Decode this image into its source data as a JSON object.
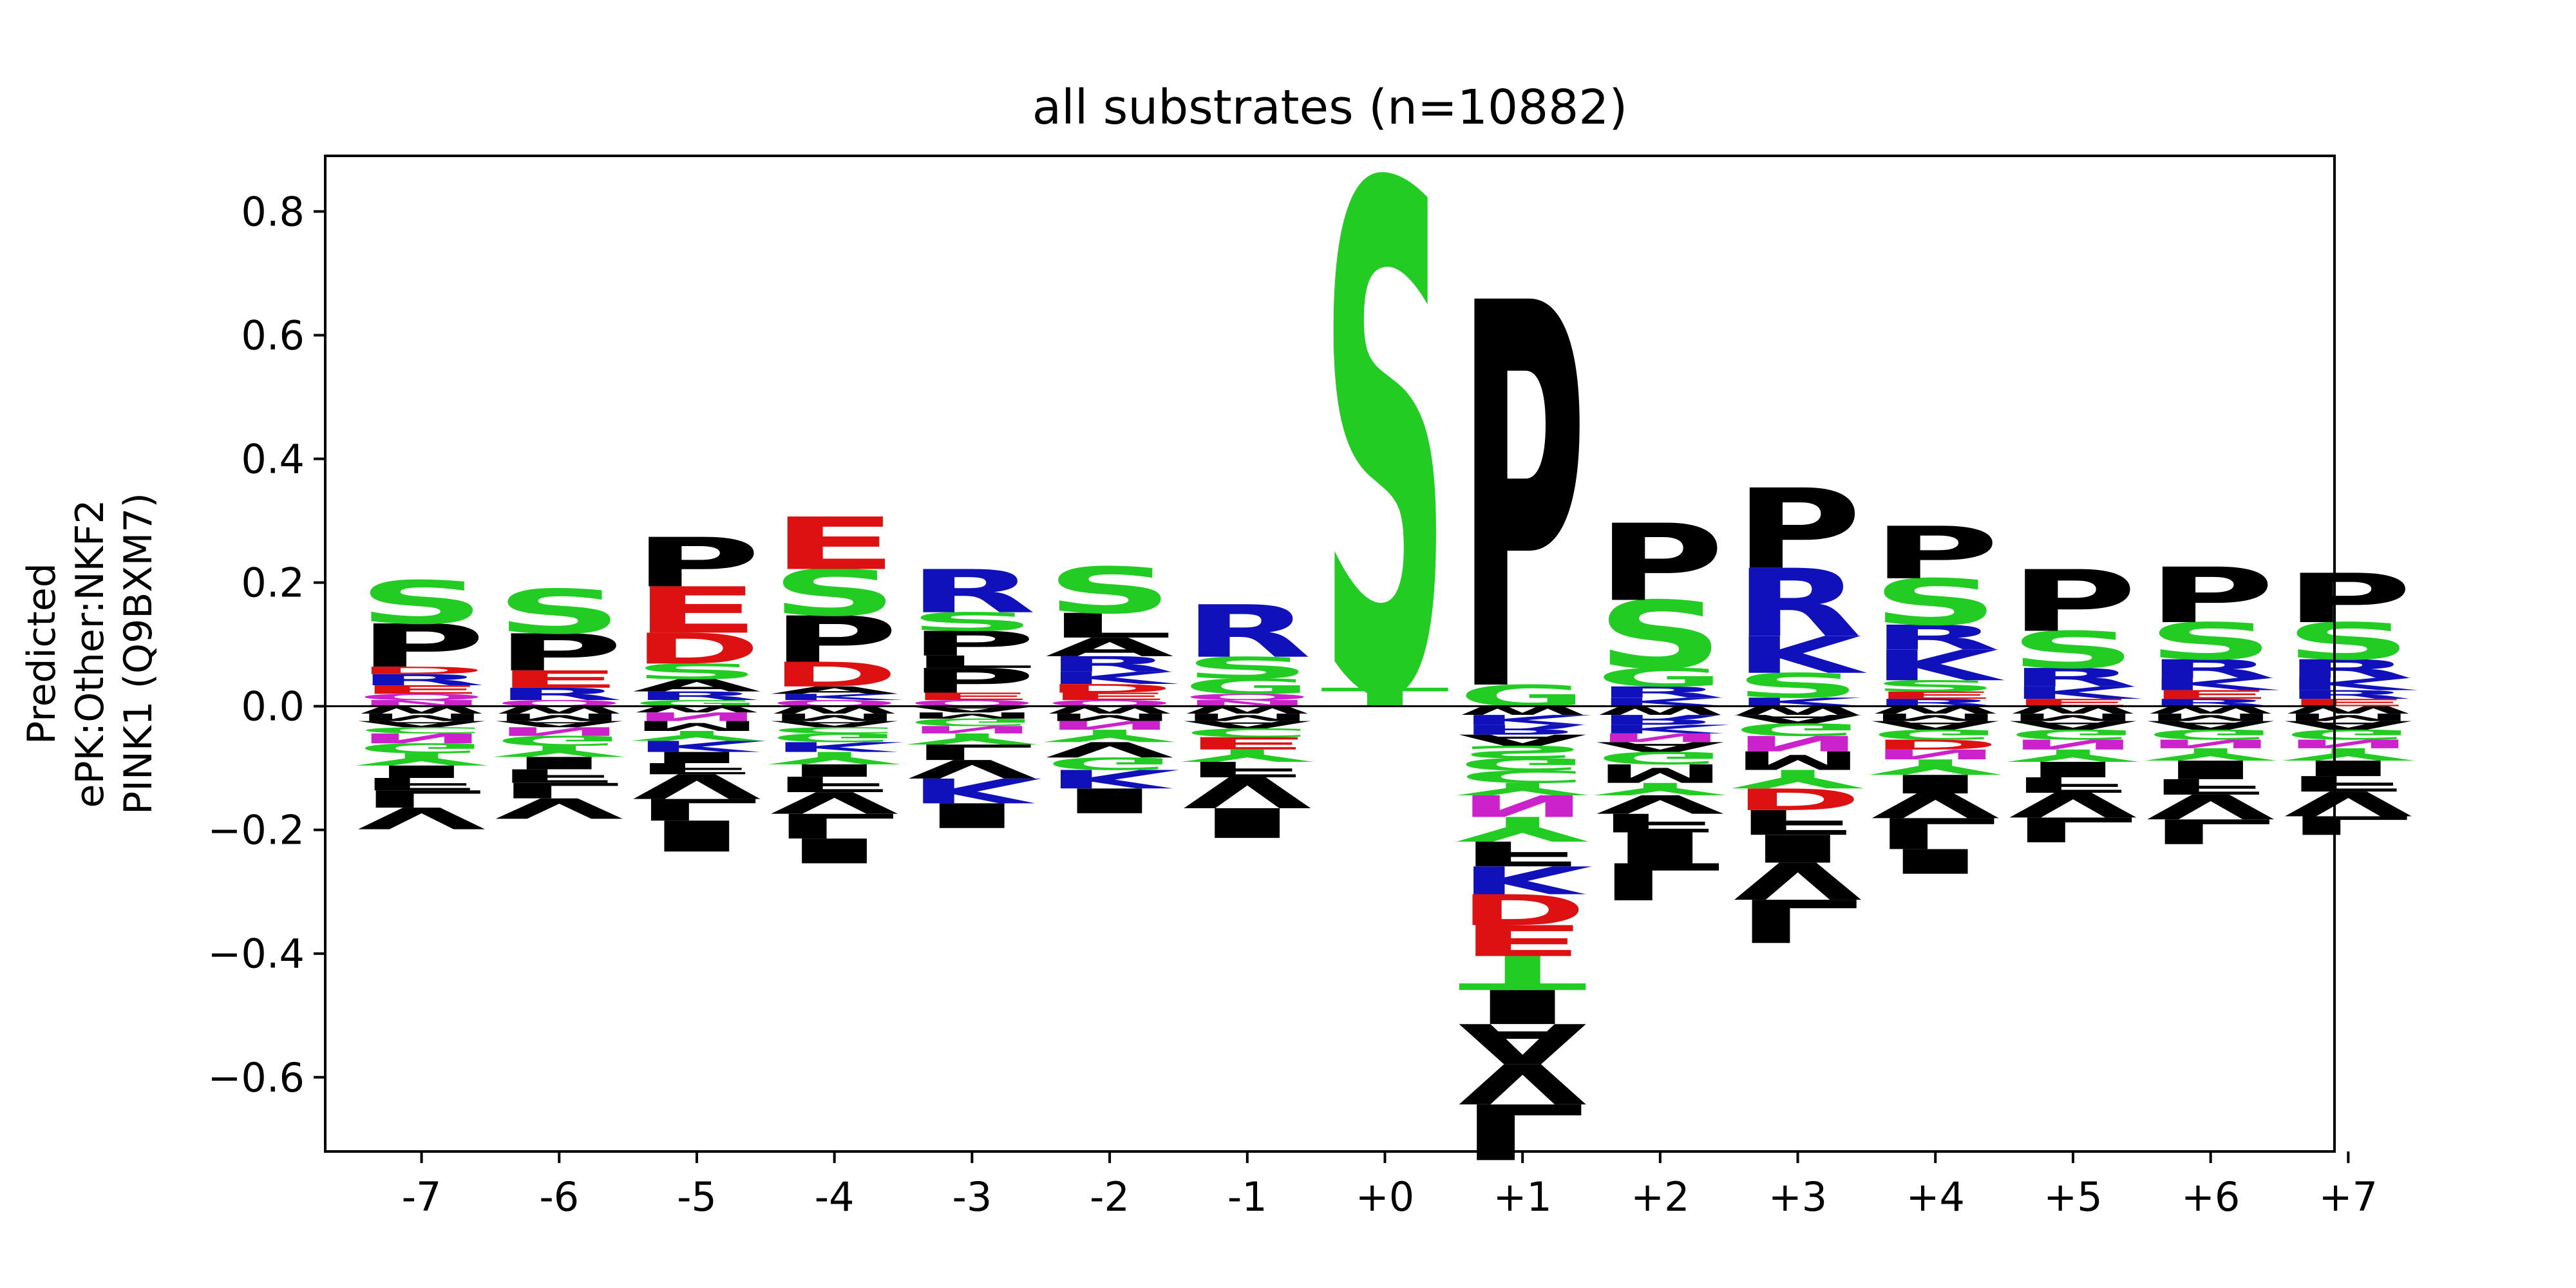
{
  "chart_data": {
    "type": "sequence-logo",
    "title": "all substrates (n=10882)",
    "ylabel_lines": [
      "Predicted",
      "ePK:Other:NKF2",
      "PINK1 (Q9BXM7)"
    ],
    "ylim": [
      -0.72,
      0.89
    ],
    "yticks": [
      -0.6,
      -0.4,
      -0.2,
      0.0,
      0.2,
      0.4,
      0.6,
      0.8
    ],
    "ytick_labels": [
      "−0.6",
      "−0.4",
      "−0.2",
      "0.0",
      "0.2",
      "0.4",
      "0.6",
      "0.8"
    ],
    "positions": [
      "-7",
      "-6",
      "-5",
      "-4",
      "-3",
      "-2",
      "-1",
      "+0",
      "+1",
      "+2",
      "+3",
      "+4",
      "+5",
      "+6",
      "+7"
    ],
    "colors": {
      "S": "#22cc22",
      "T": "#22cc22",
      "G": "#22cc22",
      "Y": "#22cc22",
      "C": "#22cc22",
      "N": "#cc22cc",
      "Q": "#cc22cc",
      "K": "#1111bb",
      "R": "#1111bb",
      "H": "#1111bb",
      "D": "#dd1111",
      "E": "#dd1111",
      "P": "#000000",
      "A": "#000000",
      "V": "#000000",
      "L": "#000000",
      "I": "#000000",
      "M": "#000000",
      "F": "#000000",
      "W": "#000000"
    },
    "columns": [
      {
        "pos": "-7",
        "up": [
          [
            "N",
            0.01
          ],
          [
            "Q",
            0.01
          ],
          [
            "E",
            0.014
          ],
          [
            "R",
            0.018
          ],
          [
            "D",
            0.012
          ],
          [
            "P",
            0.07
          ],
          [
            "S",
            0.07
          ]
        ],
        "down": [
          [
            "W",
            0.012
          ],
          [
            "M",
            0.012
          ],
          [
            "A",
            0.01
          ],
          [
            "C",
            0.01
          ],
          [
            "N",
            0.016
          ],
          [
            "G",
            0.016
          ],
          [
            "Y",
            0.02
          ],
          [
            "I",
            0.02
          ],
          [
            "F",
            0.02
          ],
          [
            "L",
            0.028
          ],
          [
            "V",
            0.035
          ]
        ]
      },
      {
        "pos": "-6",
        "up": [
          [
            "Q",
            0.01
          ],
          [
            "R",
            0.02
          ],
          [
            "E",
            0.028
          ],
          [
            "P",
            0.06
          ],
          [
            "S",
            0.072
          ]
        ],
        "down": [
          [
            "W",
            0.012
          ],
          [
            "M",
            0.012
          ],
          [
            "A",
            0.01
          ],
          [
            "N",
            0.014
          ],
          [
            "G",
            0.016
          ],
          [
            "Y",
            0.018
          ],
          [
            "I",
            0.02
          ],
          [
            "F",
            0.022
          ],
          [
            "L",
            0.025
          ],
          [
            "V",
            0.033
          ]
        ]
      },
      {
        "pos": "-5",
        "up": [
          [
            "G",
            0.01
          ],
          [
            "R",
            0.014
          ],
          [
            "A",
            0.02
          ],
          [
            "S",
            0.025
          ],
          [
            "D",
            0.05
          ],
          [
            "E",
            0.075
          ],
          [
            "P",
            0.08
          ]
        ],
        "down": [
          [
            "W",
            0.01
          ],
          [
            "N",
            0.014
          ],
          [
            "M",
            0.016
          ],
          [
            "Y",
            0.016
          ],
          [
            "K",
            0.018
          ],
          [
            "I",
            0.018
          ],
          [
            "F",
            0.018
          ],
          [
            "V",
            0.04
          ],
          [
            "L",
            0.035
          ],
          [
            "I",
            0.05
          ]
        ]
      },
      {
        "pos": "-4",
        "up": [
          [
            "Q",
            0.01
          ],
          [
            "K",
            0.01
          ],
          [
            "A",
            0.012
          ],
          [
            "D",
            0.04
          ],
          [
            "P",
            0.075
          ],
          [
            "S",
            0.075
          ],
          [
            "E",
            0.085
          ]
        ],
        "down": [
          [
            "W",
            0.012
          ],
          [
            "M",
            0.012
          ],
          [
            "A",
            0.01
          ],
          [
            "C",
            0.01
          ],
          [
            "G",
            0.014
          ],
          [
            "K",
            0.016
          ],
          [
            "Y",
            0.02
          ],
          [
            "I",
            0.02
          ],
          [
            "F",
            0.025
          ],
          [
            "V",
            0.035
          ],
          [
            "L",
            0.04
          ],
          [
            "I",
            0.04
          ]
        ]
      },
      {
        "pos": "-3",
        "up": [
          [
            "Q",
            0.01
          ],
          [
            "E",
            0.012
          ],
          [
            "P",
            0.04
          ],
          [
            "L",
            0.02
          ],
          [
            "P",
            0.04
          ],
          [
            "S",
            0.03
          ],
          [
            "R",
            0.07
          ]
        ],
        "down": [
          [
            "A",
            0.01
          ],
          [
            "M",
            0.01
          ],
          [
            "G",
            0.012
          ],
          [
            "N",
            0.012
          ],
          [
            "Y",
            0.018
          ],
          [
            "L",
            0.025
          ],
          [
            "V",
            0.03
          ],
          [
            "K",
            0.04
          ],
          [
            "I",
            0.04
          ]
        ]
      },
      {
        "pos": "-2",
        "up": [
          [
            "Q",
            0.01
          ],
          [
            "E",
            0.012
          ],
          [
            "D",
            0.014
          ],
          [
            "K",
            0.02
          ],
          [
            "R",
            0.025
          ],
          [
            "A",
            0.03
          ],
          [
            "L",
            0.04
          ],
          [
            "S",
            0.075
          ]
        ],
        "down": [
          [
            "W",
            0.012
          ],
          [
            "M",
            0.012
          ],
          [
            "N",
            0.014
          ],
          [
            "Y",
            0.02
          ],
          [
            "V",
            0.025
          ],
          [
            "G",
            0.02
          ],
          [
            "K",
            0.03
          ],
          [
            "I",
            0.04
          ]
        ]
      },
      {
        "pos": "-1",
        "up": [
          [
            "N",
            0.01
          ],
          [
            "Q",
            0.01
          ],
          [
            "G",
            0.025
          ],
          [
            "S",
            0.035
          ],
          [
            "R",
            0.085
          ]
        ],
        "down": [
          [
            "W",
            0.012
          ],
          [
            "M",
            0.012
          ],
          [
            "A",
            0.012
          ],
          [
            "C",
            0.014
          ],
          [
            "E",
            0.02
          ],
          [
            "Y",
            0.02
          ],
          [
            "F",
            0.025
          ],
          [
            "V",
            0.05
          ],
          [
            "I",
            0.048
          ]
        ]
      },
      {
        "pos": "+0",
        "up": [
          [
            "T",
            0.03
          ],
          [
            "S",
            0.82
          ]
        ],
        "down": []
      },
      {
        "pos": "+1",
        "up": [
          [
            "G",
            0.035
          ],
          [
            "P",
            0.625
          ]
        ],
        "down": [
          [
            "W",
            0.014
          ],
          [
            "K",
            0.016
          ],
          [
            "R",
            0.016
          ],
          [
            "A",
            0.018
          ],
          [
            "S",
            0.02
          ],
          [
            "G",
            0.02
          ],
          [
            "C",
            0.02
          ],
          [
            "Y",
            0.02
          ],
          [
            "N",
            0.035
          ],
          [
            "Y",
            0.04
          ],
          [
            "F",
            0.04
          ],
          [
            "K",
            0.045
          ],
          [
            "D",
            0.05
          ],
          [
            "E",
            0.05
          ],
          [
            "T",
            0.055
          ],
          [
            "I",
            0.055
          ],
          [
            "A",
            0.065
          ],
          [
            "V",
            0.065
          ],
          [
            "L",
            0.09
          ]
        ]
      },
      {
        "pos": "+2",
        "up": [
          [
            "K",
            0.014
          ],
          [
            "R",
            0.018
          ],
          [
            "G",
            0.03
          ],
          [
            "S",
            0.11
          ],
          [
            "P",
            0.125
          ]
        ],
        "down": [
          [
            "W",
            0.014
          ],
          [
            "R",
            0.016
          ],
          [
            "K",
            0.014
          ],
          [
            "N",
            0.014
          ],
          [
            "A",
            0.016
          ],
          [
            "G",
            0.02
          ],
          [
            "M",
            0.03
          ],
          [
            "Y",
            0.02
          ],
          [
            "V",
            0.03
          ],
          [
            "F",
            0.03
          ],
          [
            "I",
            0.05
          ],
          [
            "L",
            0.06
          ]
        ]
      },
      {
        "pos": "+3",
        "up": [
          [
            "K",
            0.014
          ],
          [
            "S",
            0.04
          ],
          [
            "K",
            0.06
          ],
          [
            "R",
            0.11
          ],
          [
            "P",
            0.13
          ]
        ],
        "down": [
          [
            "W",
            0.014
          ],
          [
            "A",
            0.014
          ],
          [
            "G",
            0.02
          ],
          [
            "N",
            0.025
          ],
          [
            "M",
            0.03
          ],
          [
            "Y",
            0.03
          ],
          [
            "D",
            0.035
          ],
          [
            "F",
            0.04
          ],
          [
            "I",
            0.045
          ],
          [
            "V",
            0.06
          ],
          [
            "L",
            0.07
          ]
        ]
      },
      {
        "pos": "+4",
        "up": [
          [
            "R",
            0.012
          ],
          [
            "E",
            0.012
          ],
          [
            "S",
            0.018
          ],
          [
            "K",
            0.05
          ],
          [
            "R",
            0.04
          ],
          [
            "S",
            0.075
          ],
          [
            "P",
            0.085
          ]
        ],
        "down": [
          [
            "W",
            0.012
          ],
          [
            "M",
            0.012
          ],
          [
            "A",
            0.014
          ],
          [
            "G",
            0.016
          ],
          [
            "D",
            0.016
          ],
          [
            "N",
            0.016
          ],
          [
            "Y",
            0.025
          ],
          [
            "I",
            0.03
          ],
          [
            "V",
            0.04
          ],
          [
            "L",
            0.05
          ],
          [
            "I",
            0.04
          ]
        ]
      },
      {
        "pos": "+5",
        "up": [
          [
            "E",
            0.012
          ],
          [
            "K",
            0.02
          ],
          [
            "R",
            0.03
          ],
          [
            "S",
            0.06
          ],
          [
            "P",
            0.1
          ]
        ],
        "down": [
          [
            "W",
            0.012
          ],
          [
            "M",
            0.012
          ],
          [
            "A",
            0.014
          ],
          [
            "G",
            0.016
          ],
          [
            "N",
            0.016
          ],
          [
            "Y",
            0.02
          ],
          [
            "I",
            0.025
          ],
          [
            "F",
            0.025
          ],
          [
            "V",
            0.04
          ],
          [
            "L",
            0.04
          ]
        ]
      },
      {
        "pos": "+6",
        "up": [
          [
            "R",
            0.012
          ],
          [
            "E",
            0.014
          ],
          [
            "K",
            0.02
          ],
          [
            "R",
            0.03
          ],
          [
            "S",
            0.06
          ],
          [
            "P",
            0.09
          ]
        ],
        "down": [
          [
            "W",
            0.012
          ],
          [
            "M",
            0.012
          ],
          [
            "A",
            0.014
          ],
          [
            "G",
            0.016
          ],
          [
            "N",
            0.014
          ],
          [
            "Y",
            0.02
          ],
          [
            "I",
            0.03
          ],
          [
            "F",
            0.025
          ],
          [
            "V",
            0.04
          ],
          [
            "L",
            0.04
          ]
        ]
      },
      {
        "pos": "+7",
        "up": [
          [
            "E",
            0.012
          ],
          [
            "R",
            0.014
          ],
          [
            "K",
            0.02
          ],
          [
            "R",
            0.03
          ],
          [
            "S",
            0.06
          ],
          [
            "P",
            0.08
          ]
        ],
        "down": [
          [
            "W",
            0.012
          ],
          [
            "M",
            0.012
          ],
          [
            "A",
            0.014
          ],
          [
            "G",
            0.016
          ],
          [
            "N",
            0.014
          ],
          [
            "Y",
            0.02
          ],
          [
            "I",
            0.025
          ],
          [
            "F",
            0.025
          ],
          [
            "V",
            0.04
          ],
          [
            "L",
            0.03
          ]
        ]
      }
    ]
  }
}
